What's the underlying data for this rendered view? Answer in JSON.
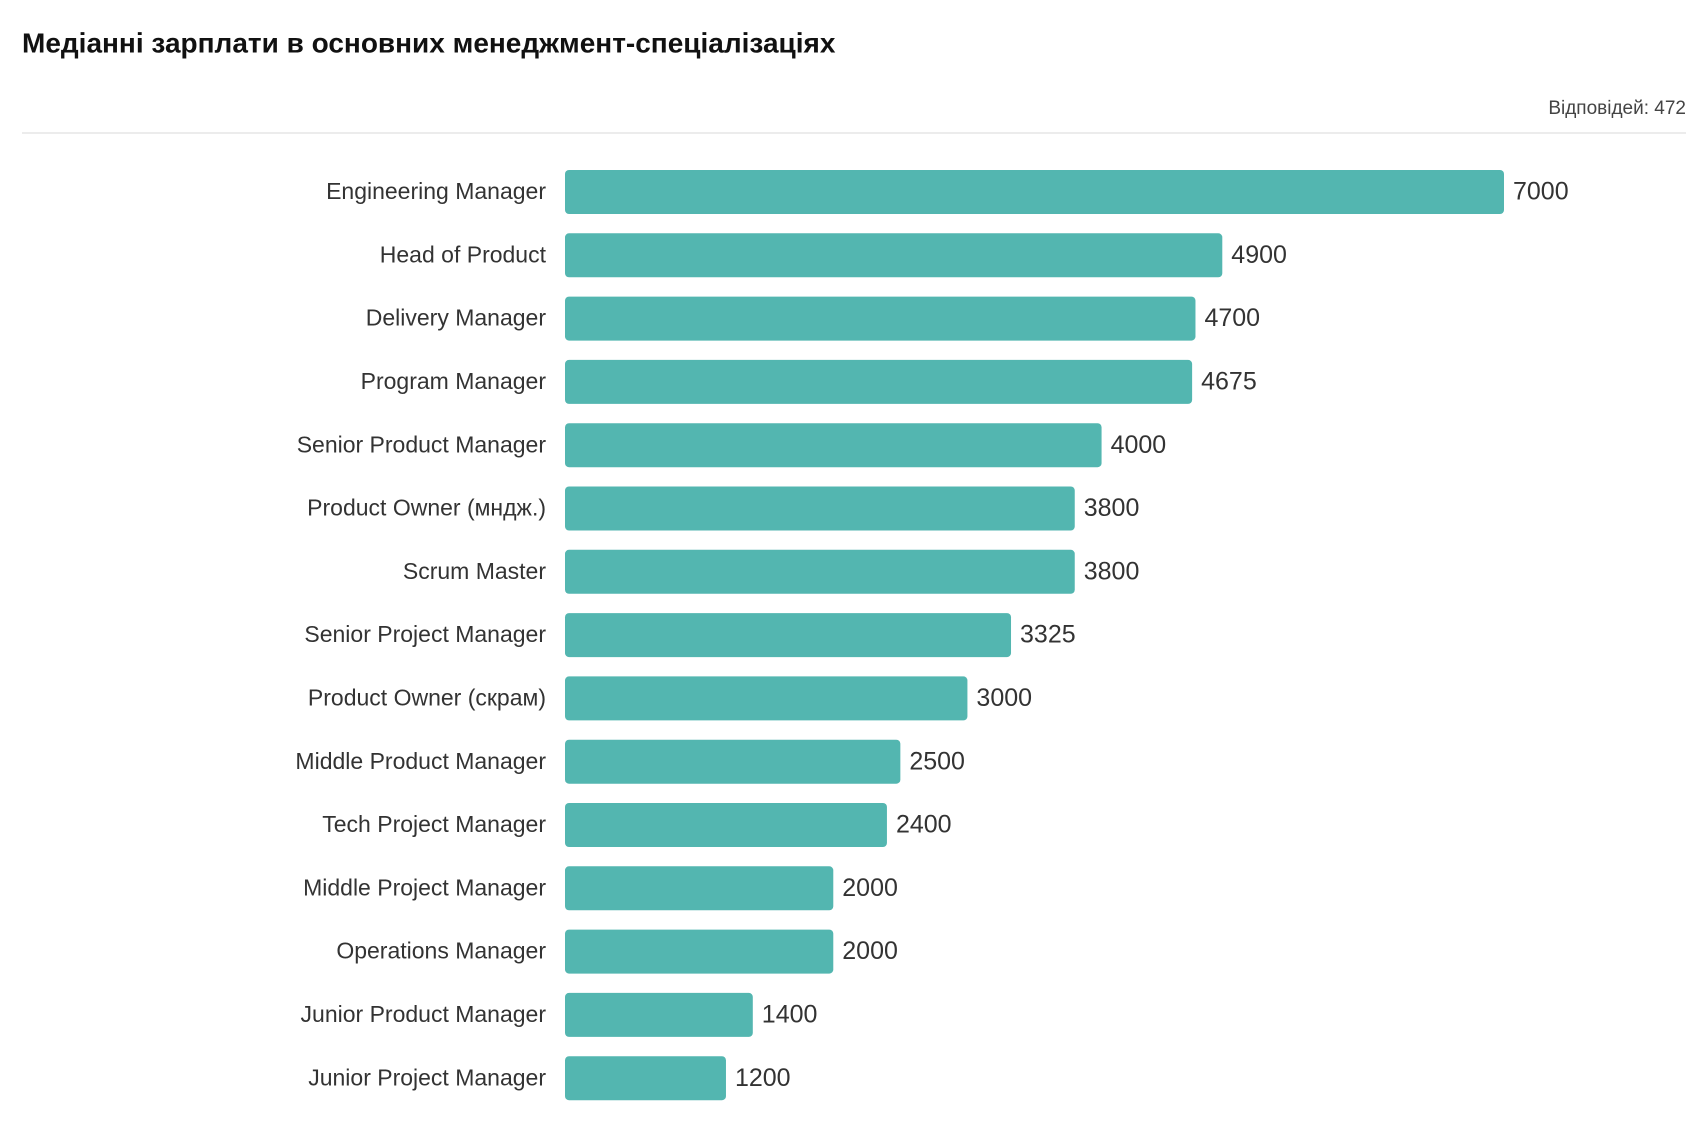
{
  "chart_data": {
    "type": "bar",
    "orientation": "horizontal",
    "title": "Медіанні зарплати в основних менеджмент-спеціалізаціях",
    "note": "Відповідей: 472",
    "categories": [
      "Engineering Manager",
      "Head of Product",
      "Delivery Manager",
      "Program Manager",
      "Senior Product Manager",
      "Product Owner (мндж.)",
      "Scrum Master",
      "Senior Project Manager",
      "Product Owner (скрам)",
      "Middle Product Manager",
      "Tech Project Manager",
      "Middle Project Manager",
      "Operations Manager",
      "Junior Product Manager",
      "Junior Project Manager"
    ],
    "values": [
      7000,
      4900,
      4700,
      4675,
      4000,
      3800,
      3800,
      3325,
      3000,
      2500,
      2400,
      2000,
      2000,
      1400,
      1200
    ],
    "color": "#53b6b0"
  }
}
